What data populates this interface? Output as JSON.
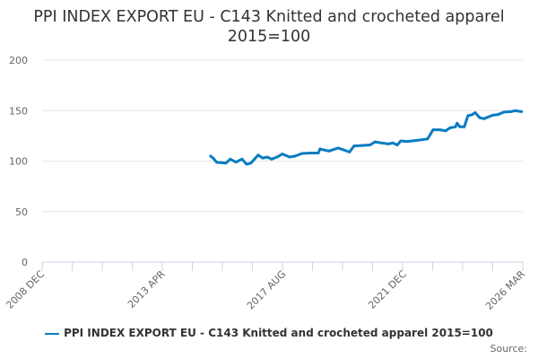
{
  "chart_data": {
    "type": "line",
    "title": "PPI INDEX EXPORT EU - C143 Knitted and crocheted apparel 2015=100",
    "xlabel": "",
    "ylabel": "",
    "ylim": [
      0,
      200
    ],
    "yticks": [
      "0",
      "50",
      "100",
      "150",
      "200"
    ],
    "ytick_values": [
      0,
      50,
      100,
      150,
      200
    ],
    "xlim": [
      2008.917,
      2026.167
    ],
    "xticks": [
      {
        "label": "2008 DEC",
        "value": 2008.917
      },
      {
        "label": "2013 APR",
        "value": 2013.25
      },
      {
        "label": "2017 AUG",
        "value": 2017.583
      },
      {
        "label": "2021 DEC",
        "value": 2021.917
      },
      {
        "label": "2026 MAR",
        "value": 2026.167
      }
    ],
    "minor_tick_count": 16,
    "grid": true,
    "legend_position": "bottom",
    "series": [
      {
        "name": "PPI INDEX EXPORT EU - C143 Knitted and crocheted apparel 2015=100",
        "color": "#0a7cc1",
        "points": [
          [
            2014.96,
            105
          ],
          [
            2015.05,
            103
          ],
          [
            2015.19,
            98.7
          ],
          [
            2015.35,
            98.5
          ],
          [
            2015.51,
            98
          ],
          [
            2015.67,
            102
          ],
          [
            2015.87,
            99
          ],
          [
            2016.09,
            102
          ],
          [
            2016.25,
            97
          ],
          [
            2016.41,
            98
          ],
          [
            2016.67,
            106
          ],
          [
            2016.83,
            103
          ],
          [
            2017.0,
            104
          ],
          [
            2017.15,
            102
          ],
          [
            2017.35,
            104
          ],
          [
            2017.54,
            107
          ],
          [
            2017.8,
            104
          ],
          [
            2018.0,
            105
          ],
          [
            2018.25,
            107.6
          ],
          [
            2018.55,
            108
          ],
          [
            2018.83,
            108
          ],
          [
            2018.89,
            112
          ],
          [
            2019.21,
            110
          ],
          [
            2019.54,
            113
          ],
          [
            2019.75,
            111
          ],
          [
            2019.95,
            109
          ],
          [
            2020.11,
            115
          ],
          [
            2020.4,
            115.5
          ],
          [
            2020.69,
            116
          ],
          [
            2020.86,
            119
          ],
          [
            2021.1,
            118
          ],
          [
            2021.34,
            117
          ],
          [
            2021.5,
            118
          ],
          [
            2021.66,
            116
          ],
          [
            2021.79,
            120
          ],
          [
            2022.0,
            119.5
          ],
          [
            2022.21,
            120
          ],
          [
            2022.5,
            121
          ],
          [
            2022.75,
            122
          ],
          [
            2022.95,
            131
          ],
          [
            2023.2,
            131
          ],
          [
            2023.4,
            130
          ],
          [
            2023.56,
            133
          ],
          [
            2023.75,
            134
          ],
          [
            2023.81,
            137.5
          ],
          [
            2023.91,
            134
          ],
          [
            2024.07,
            134
          ],
          [
            2024.2,
            145
          ],
          [
            2024.35,
            146
          ],
          [
            2024.46,
            148
          ],
          [
            2024.62,
            143
          ],
          [
            2024.78,
            142
          ],
          [
            2024.95,
            144
          ],
          [
            2025.1,
            145.5
          ],
          [
            2025.26,
            146
          ],
          [
            2025.49,
            148.5
          ],
          [
            2025.74,
            149
          ],
          [
            2025.9,
            150
          ],
          [
            2026.0,
            149.5
          ],
          [
            2026.13,
            149
          ]
        ]
      }
    ],
    "source_label": "Source:"
  }
}
